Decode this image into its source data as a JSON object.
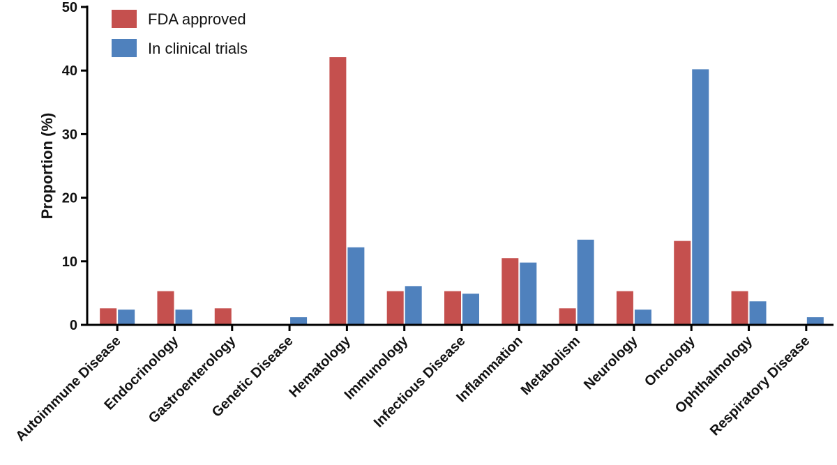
{
  "chart_data": {
    "type": "bar",
    "ylabel": "Proportion (%)",
    "xlabel": "",
    "ylim": [
      0,
      50
    ],
    "yticks": [
      0,
      10,
      20,
      30,
      40,
      50
    ],
    "grid": false,
    "legend_position": "top-left",
    "categories": [
      "Autoimmune Disease",
      "Endocrinology",
      "Gastroenterology",
      "Genetic Disease",
      "Hematology",
      "Immunology",
      "Infectious Disease",
      "Inflammation",
      "Metabolism",
      "Neurology",
      "Oncology",
      "Ophthalmology",
      "Respiratory Disease"
    ],
    "series": [
      {
        "name": "FDA approved",
        "color": "#c5504e",
        "values": [
          2.6,
          5.3,
          2.6,
          0,
          42.1,
          5.3,
          5.3,
          10.5,
          2.6,
          5.3,
          13.2,
          5.3,
          0
        ]
      },
      {
        "name": "In clinical trials",
        "color": "#4f81bd",
        "values": [
          2.4,
          2.4,
          0,
          1.2,
          12.2,
          6.1,
          4.9,
          9.8,
          13.4,
          2.4,
          40.2,
          3.7,
          1.2
        ]
      }
    ]
  }
}
